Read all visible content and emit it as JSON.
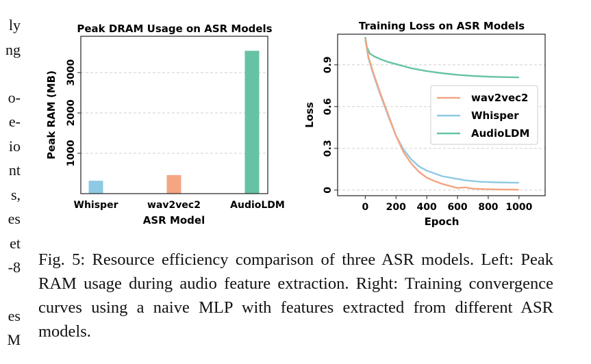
{
  "left_column_fragments": [
    "ly",
    "ng",
    "o-",
    "e-",
    "io",
    "nt",
    "s,",
    "es",
    "et",
    "-8",
    "es",
    "M"
  ],
  "chart_data": [
    {
      "type": "bar",
      "title": "Peak DRAM Usage on ASR Models",
      "xlabel": "ASR Model",
      "ylabel": "Peak RAM (MB)",
      "categories": [
        "Whisper",
        "wav2vec2",
        "AudioLDM"
      ],
      "values": [
        320,
        460,
        3540
      ],
      "colors": [
        "#8ec9e3",
        "#f4a582",
        "#66c2a5"
      ],
      "yticks": [
        1000,
        2000,
        3000
      ],
      "ylim": [
        0,
        3900
      ],
      "grid": true
    },
    {
      "type": "line",
      "title": "Training Loss on ASR Models",
      "xlabel": "Epoch",
      "ylabel": "Loss",
      "xticks": [
        0,
        200,
        400,
        600,
        800,
        1000
      ],
      "yticks": [
        0,
        0.3,
        0.6,
        0.9
      ],
      "ytick_labels": [
        "0",
        "0.3",
        "0.6",
        "0.9"
      ],
      "xlim": [
        -180,
        1170
      ],
      "ylim": [
        -0.04,
        1.12
      ],
      "legend_position": "center-right",
      "grid": true,
      "series": [
        {
          "name": "wav2vec2",
          "color": "#f4a582",
          "x": [
            0,
            20,
            50,
            100,
            150,
            200,
            250,
            300,
            350,
            400,
            450,
            500,
            550,
            600,
            650,
            700,
            750,
            800,
            850,
            900,
            950,
            1000
          ],
          "y": [
            1.09,
            0.96,
            0.85,
            0.69,
            0.54,
            0.39,
            0.27,
            0.19,
            0.13,
            0.09,
            0.065,
            0.045,
            0.03,
            0.015,
            0.02,
            0.01,
            0.008,
            0.006,
            0.005,
            0.004,
            0.004,
            0.003
          ]
        },
        {
          "name": "Whisper",
          "color": "#8ec9e3",
          "x": [
            0,
            20,
            50,
            100,
            150,
            200,
            250,
            300,
            350,
            400,
            450,
            500,
            550,
            600,
            650,
            700,
            750,
            800,
            850,
            900,
            950,
            1000
          ],
          "y": [
            1.08,
            0.95,
            0.84,
            0.68,
            0.53,
            0.39,
            0.29,
            0.22,
            0.17,
            0.14,
            0.12,
            0.1,
            0.09,
            0.08,
            0.07,
            0.065,
            0.06,
            0.058,
            0.056,
            0.055,
            0.054,
            0.053
          ]
        },
        {
          "name": "AudioLDM",
          "color": "#66c2a5",
          "x": [
            0,
            10,
            30,
            60,
            100,
            150,
            200,
            300,
            400,
            500,
            600,
            700,
            800,
            900,
            1000
          ],
          "y": [
            1.1,
            1.03,
            0.98,
            0.96,
            0.94,
            0.92,
            0.905,
            0.875,
            0.855,
            0.84,
            0.828,
            0.82,
            0.815,
            0.812,
            0.81
          ]
        }
      ]
    }
  ],
  "caption": "Fig. 5: Resource efficiency comparison of three ASR models. Left: Peak RAM usage during audio feature extraction. Right: Training convergence curves using a naive MLP with features extracted from different ASR models."
}
